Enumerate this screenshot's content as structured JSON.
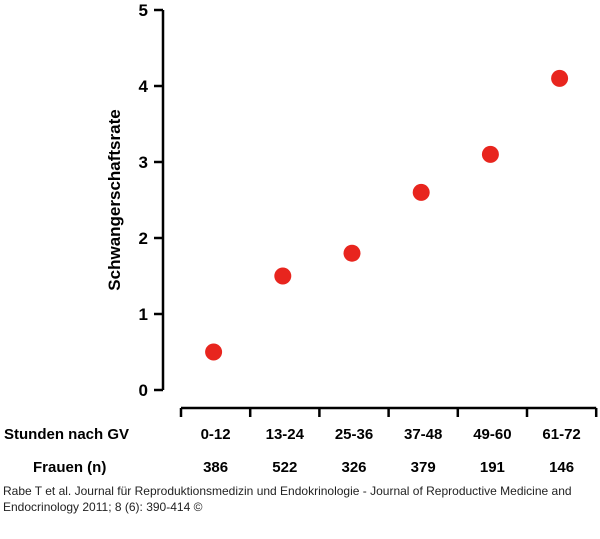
{
  "chart_data": {
    "type": "scatter",
    "ylabel": "Schwangerschaftsrate",
    "ylim": [
      0,
      5
    ],
    "yticks": [
      "0",
      "1",
      "2",
      "3",
      "4",
      "5"
    ],
    "categories": [
      "0-12",
      "13-24",
      "25-36",
      "37-48",
      "49-60",
      "61-72"
    ],
    "values": [
      0.5,
      1.5,
      1.8,
      2.6,
      3.1,
      4.1
    ],
    "x_row_label": "Stunden nach GV",
    "count_row_label": "Frauen (n)",
    "counts": [
      "386",
      "522",
      "326",
      "379",
      "191",
      "146"
    ],
    "marker_color": "#e8251e",
    "grid": false,
    "legend": "none"
  },
  "citation": "Rabe T et al. Journal für Reproduktionsmedizin und Endokrinologie - Journal of Reproductive Medicine and Endocrinology 2011; 8 (6): 390-414 ©"
}
